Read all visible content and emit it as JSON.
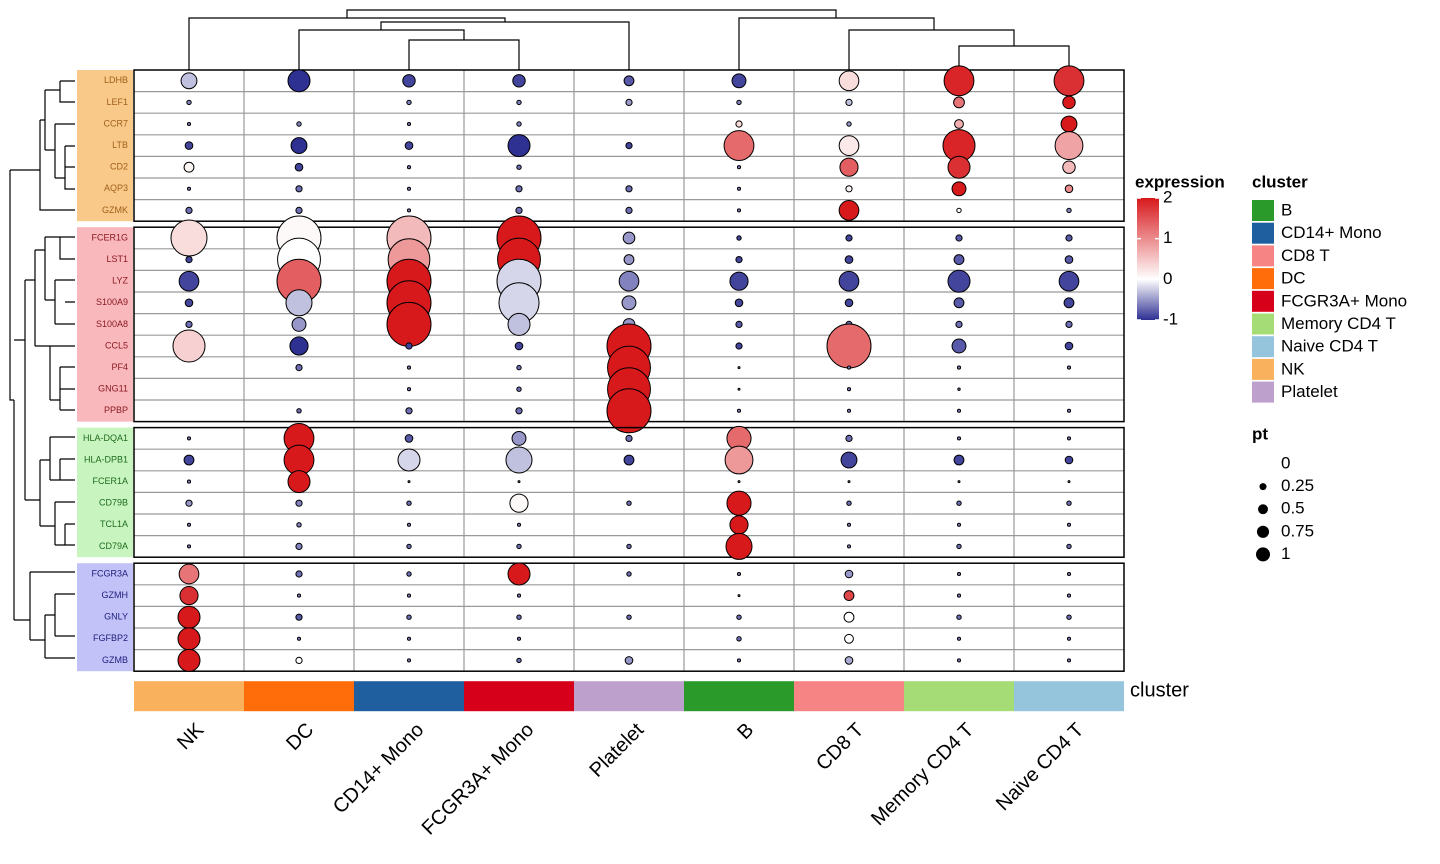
{
  "chart_data": {
    "type": "dotplot",
    "clusters": [
      "NK",
      "DC",
      "CD14+ Mono",
      "FCGR3A+ Mono",
      "Platelet",
      "B",
      "CD8 T",
      "Memory CD4 T",
      "Naive CD4 T"
    ],
    "annotation_label": "cluster",
    "row_groups": [
      {
        "color": "#f9c98a",
        "text_color": "#a0601a",
        "genes": [
          "LDHB",
          "LEF1",
          "CCR7",
          "LTB",
          "CD2",
          "AQP3",
          "GZMK"
        ],
        "expression": [
          [
            -0.3,
            -1,
            -0.9,
            -0.9,
            -0.8,
            -0.9,
            0.3,
            1.9,
            1.8
          ],
          [
            -0.6,
            -0.5,
            -0.6,
            -0.6,
            -0.5,
            -0.6,
            -0.3,
            1.2,
            2
          ],
          [
            -0.6,
            -0.6,
            -0.6,
            -0.6,
            -0.6,
            0.3,
            -0.5,
            0.7,
            2
          ],
          [
            -0.9,
            -1,
            -0.9,
            -1,
            -0.9,
            1.3,
            0.2,
            1.9,
            0.8
          ],
          [
            0.1,
            -0.9,
            -0.6,
            -0.7,
            -0.6,
            -0.6,
            1.4,
            1.8,
            0.6
          ],
          [
            -0.6,
            -0.7,
            -0.6,
            -0.7,
            -0.7,
            -0.6,
            0.1,
            2,
            1
          ],
          [
            -0.7,
            -0.7,
            -0.6,
            -0.7,
            -0.7,
            -0.6,
            2,
            0,
            -0.6
          ]
        ],
        "pt": [
          [
            0.13,
            0.25,
            0.08,
            0.08,
            0.05,
            0.1,
            0.2,
            0.46,
            0.46
          ],
          [
            0.01,
            0,
            0.01,
            0.01,
            0.02,
            0.01,
            0.02,
            0.06,
            0.08
          ],
          [
            0.005,
            0.01,
            0.005,
            0.01,
            0,
            0.02,
            0.01,
            0.04,
            0.13
          ],
          [
            0.03,
            0.13,
            0.03,
            0.25,
            0.02,
            0.46,
            0.2,
            0.53,
            0.4
          ],
          [
            0.05,
            0.03,
            0.005,
            0.01,
            0,
            0.005,
            0.17,
            0.25,
            0.08
          ],
          [
            0.005,
            0.02,
            0.005,
            0.02,
            0.02,
            0.005,
            0.02,
            0.1,
            0.03
          ],
          [
            0.02,
            0.02,
            0.005,
            0.02,
            0.02,
            0.005,
            0.2,
            0.01,
            0.01
          ]
        ]
      },
      {
        "color": "#f9b8bc",
        "text_color": "#8a1a22",
        "genes": [
          "FCER1G",
          "LST1",
          "LYZ",
          "S100A9",
          "S100A8",
          "CCL5",
          "PF4",
          "GNG11",
          "PPBP"
        ],
        "expression": [
          [
            0.3,
            0.05,
            0.6,
            2,
            -0.5,
            -0.9,
            -0.9,
            -0.8,
            -0.8
          ],
          [
            -0.9,
            0,
            0.9,
            2,
            -0.5,
            -0.9,
            -0.9,
            -0.8,
            -0.8
          ],
          [
            -0.9,
            1.4,
            2,
            -0.2,
            -0.6,
            -0.9,
            -0.9,
            -0.9,
            -0.9
          ],
          [
            -0.9,
            -0.3,
            2,
            -0.2,
            -0.5,
            -0.9,
            -0.9,
            -0.8,
            -0.9
          ],
          [
            -0.7,
            -0.5,
            2,
            -0.3,
            -0.5,
            -0.8,
            -0.7,
            -0.7,
            -0.7
          ],
          [
            0.4,
            -1,
            -0.9,
            -0.9,
            2,
            -0.9,
            1.3,
            -0.8,
            -0.9
          ],
          [
            -0.6,
            -0.7,
            -0.6,
            -0.7,
            2,
            -0.6,
            -0.6,
            -0.6,
            -0.6
          ],
          [
            -0.6,
            -0.6,
            -0.6,
            -0.7,
            2,
            -0.6,
            -0.6,
            -0.6,
            -0.6
          ],
          [
            -0.6,
            -0.7,
            -0.7,
            -0.7,
            2,
            -0.6,
            -0.6,
            -0.6,
            -0.6
          ]
        ],
        "pt": [
          [
            0.67,
            1,
            1,
            1,
            0.07,
            0.01,
            0.02,
            0.02,
            0.02
          ],
          [
            0.02,
            0.95,
            0.9,
            0.95,
            0.05,
            0.02,
            0.03,
            0.05,
            0.03
          ],
          [
            0.2,
            1,
            1,
            1,
            0.2,
            0.17,
            0.2,
            0.25,
            0.2
          ],
          [
            0.03,
            0.35,
            1,
            0.83,
            0.1,
            0.03,
            0.03,
            0.05,
            0.05
          ],
          [
            0.02,
            0.1,
            1,
            0.25,
            0.07,
            0.02,
            0.02,
            0.02,
            0.02
          ],
          [
            0.53,
            0.17,
            0.02,
            0.03,
            1,
            0.02,
            1,
            0.1,
            0.03
          ],
          [
            0,
            0.02,
            0.005,
            0.01,
            0.95,
            0.002,
            0.005,
            0.005,
            0.005
          ],
          [
            0,
            0,
            0.005,
            0.01,
            0.95,
            0.002,
            0.005,
            0.003,
            0
          ],
          [
            0,
            0.01,
            0.02,
            0.02,
            1,
            0.005,
            0.005,
            0.005,
            0.005
          ]
        ]
      },
      {
        "color": "#c8f5bf",
        "text_color": "#1e6a1e",
        "genes": [
          "HLA-DQA1",
          "HLA-DPB1",
          "FCER1A",
          "CD79B",
          "TCL1A",
          "CD79A"
        ],
        "expression": [
          [
            -0.6,
            2,
            -0.8,
            -0.5,
            -0.7,
            1.3,
            -0.7,
            -0.6,
            -0.6
          ],
          [
            -0.9,
            2,
            -0.2,
            -0.3,
            -0.9,
            0.9,
            -0.9,
            -0.9,
            -0.9
          ],
          [
            -0.6,
            2,
            -0.6,
            -0.6,
            -0.6,
            -0.6,
            -0.6,
            -0.6,
            -0.6
          ],
          [
            -0.5,
            -0.6,
            -0.7,
            0.05,
            -0.7,
            2,
            -0.7,
            -0.7,
            -0.7
          ],
          [
            -0.6,
            -0.6,
            -0.6,
            -0.6,
            -0.6,
            2,
            -0.6,
            -0.6,
            -0.6
          ],
          [
            -0.6,
            -0.6,
            -0.7,
            -0.7,
            -0.7,
            2,
            -0.6,
            -0.7,
            -0.7
          ]
        ],
        "pt": [
          [
            0.005,
            0.46,
            0.03,
            0.1,
            0.02,
            0.3,
            0.02,
            0.005,
            0.005
          ],
          [
            0.05,
            0.46,
            0.25,
            0.35,
            0.05,
            0.4,
            0.13,
            0.05,
            0.03
          ],
          [
            0.005,
            0.25,
            0.002,
            0.002,
            0,
            0.002,
            0.002,
            0.002,
            0.002
          ],
          [
            0.02,
            0.02,
            0.01,
            0.17,
            0.01,
            0.3,
            0.01,
            0.01,
            0.01
          ],
          [
            0.005,
            0.01,
            0.005,
            0.005,
            0,
            0.17,
            0.005,
            0.005,
            0.005
          ],
          [
            0.005,
            0.02,
            0.01,
            0.01,
            0.01,
            0.35,
            0.005,
            0.01,
            0.01
          ]
        ]
      },
      {
        "color": "#c2c2f9",
        "text_color": "#1e1e7a",
        "genes": [
          "FCGR3A",
          "GZMH",
          "GNLY",
          "FGFBP2",
          "GZMB"
        ],
        "expression": [
          [
            1.2,
            -0.7,
            -0.7,
            2,
            -0.7,
            -0.6,
            -0.5,
            -0.6,
            -0.6
          ],
          [
            1.8,
            -0.6,
            -0.6,
            -0.6,
            -0.6,
            -0.6,
            1.6,
            -0.6,
            -0.6
          ],
          [
            2,
            -0.8,
            -0.7,
            -0.7,
            -0.7,
            -0.7,
            0,
            -0.7,
            -0.7
          ],
          [
            2,
            -0.6,
            -0.6,
            -0.6,
            -0.6,
            -0.7,
            0,
            -0.6,
            -0.6
          ],
          [
            2,
            0,
            -0.6,
            -0.7,
            -0.5,
            -0.6,
            -0.4,
            -0.6,
            -0.6
          ]
        ],
        "pt": [
          [
            0.2,
            0.02,
            0.01,
            0.25,
            0.01,
            0.005,
            0.03,
            0.005,
            0.005
          ],
          [
            0.17,
            0.005,
            0.005,
            0.005,
            0,
            0.002,
            0.05,
            0.005,
            0.005
          ],
          [
            0.25,
            0.02,
            0.01,
            0.01,
            0.01,
            0.01,
            0.05,
            0.01,
            0.01
          ],
          [
            0.25,
            0.005,
            0.005,
            0.005,
            0,
            0.01,
            0.04,
            0.005,
            0.005
          ],
          [
            0.25,
            0.02,
            0.005,
            0.01,
            0.03,
            0.005,
            0.03,
            0.005,
            0.005
          ]
        ]
      }
    ],
    "expression_legend": {
      "title": "expression",
      "lim": [
        -1,
        2
      ],
      "ticks": [
        -1,
        0,
        1,
        2
      ],
      "low": "#2e3092",
      "mid": "#ffffff",
      "high": "#d7191c"
    },
    "cluster_legend": {
      "title": "cluster",
      "entries": [
        {
          "name": "B",
          "color": "#2a9a2a"
        },
        {
          "name": "CD14+ Mono",
          "color": "#1f5fa0"
        },
        {
          "name": "CD8 T",
          "color": "#f68484"
        },
        {
          "name": "DC",
          "color": "#ff6c0a"
        },
        {
          "name": "FCGR3A+ Mono",
          "color": "#d7001a"
        },
        {
          "name": "Memory CD4 T",
          "color": "#a5dc75"
        },
        {
          "name": "Naive CD4 T",
          "color": "#94c5dd"
        },
        {
          "name": "NK",
          "color": "#f9b15e"
        },
        {
          "name": "Platelet",
          "color": "#bea0cc"
        }
      ]
    },
    "pt_legend": {
      "title": "pt",
      "values": [
        0,
        0.25,
        0.5,
        0.75,
        1
      ]
    }
  }
}
